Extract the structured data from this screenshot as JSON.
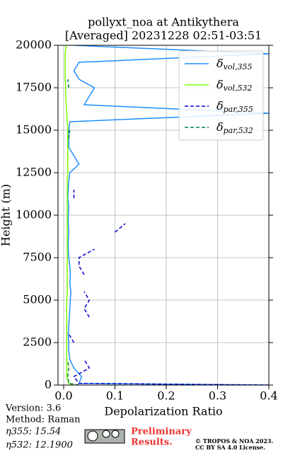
{
  "chart_data": {
    "type": "line",
    "title": [
      "pollyxt_noa at Antikythera",
      "[Averaged] 20231228 02:51-03:51"
    ],
    "x_label": "Depolarization Ratio",
    "y_label": "Height (m)",
    "xlim": [
      -0.011,
      0.4
    ],
    "ylim": [
      0,
      20000
    ],
    "xticks": [
      {
        "value": 0,
        "label": "0.0"
      },
      0.1,
      0.2,
      0.3,
      0.4
    ],
    "yticks": [
      0,
      2500,
      5000,
      7500,
      10000,
      12500,
      15000,
      17500,
      20000
    ],
    "grid": true,
    "legend": "upper right",
    "y": [
      0,
      100,
      500,
      1000,
      1500,
      2000,
      2500,
      3000,
      3500,
      4000,
      4500,
      5000,
      5500,
      6000,
      6500,
      7000,
      7500,
      8000,
      8500,
      9000,
      9500,
      10000,
      10500,
      11000,
      11500,
      12000,
      12500,
      13000,
      13500,
      14000,
      14500,
      15000,
      15500,
      16000,
      16500,
      17000,
      17500,
      18000,
      18500,
      19000,
      19500,
      20000
    ],
    "series": [
      {
        "name": "δvol,355",
        "color": "#1e8fff",
        "linestyle": "solid",
        "values": [
          0.4,
          0.03,
          0.035,
          0.02,
          0.012,
          0.01,
          0.01,
          0.009,
          0.01,
          0.011,
          0.012,
          0.013,
          0.014,
          0.012,
          0.013,
          0.012,
          0.01,
          0.009,
          0.009,
          0.01,
          0.009,
          0.009,
          0.01,
          0.008,
          0.009,
          0.01,
          0.012,
          0.03,
          0.02,
          0.01,
          0.01,
          0.01,
          0.012,
          0.4,
          0.04,
          0.05,
          0.06,
          0.03,
          0.02,
          0.03,
          0.4,
          0.02
        ]
      },
      {
        "name": "δvol,532",
        "color": "#7cfc00",
        "linestyle": "solid",
        "values": [
          0.02,
          0.01,
          0.006,
          0.006,
          0.006,
          0.006,
          0.006,
          0.006,
          0.006,
          0.006,
          0.006,
          0.006,
          0.007,
          0.007,
          0.007,
          0.007,
          0.007,
          0.007,
          0.007,
          0.007,
          0.007,
          0.007,
          0.007,
          0.007,
          0.007,
          0.007,
          0.008,
          0.008,
          0.008,
          0.008,
          0.008,
          0.008,
          0.007,
          0.006,
          0.005,
          0.004,
          0.004,
          0.003,
          0.003,
          0.003,
          0.003,
          0.005
        ]
      },
      {
        "name": "δpar,355",
        "color": "#0000cc",
        "linestyle": "dashed",
        "values": [
          0.4,
          0.03,
          0.02,
          0.05,
          0.04,
          null,
          0.02,
          0.01,
          null,
          0.05,
          0.04,
          0.05,
          0.04,
          null,
          0.04,
          0.03,
          0.03,
          0.06,
          null,
          0.1,
          0.12,
          null,
          null,
          0.02,
          0.02,
          null,
          null,
          null,
          null,
          null,
          null,
          null,
          null,
          null,
          null,
          null,
          null,
          null,
          null,
          null,
          null,
          null
        ]
      },
      {
        "name": "δpar,532",
        "color": "#008040",
        "linestyle": "dashed",
        "values": [
          0.03,
          0.01,
          0.008,
          0.01,
          0.008,
          null,
          null,
          null,
          null,
          null,
          null,
          null,
          null,
          null,
          null,
          null,
          null,
          null,
          null,
          null,
          null,
          null,
          null,
          null,
          null,
          null,
          null,
          null,
          null,
          null,
          0.01,
          0.012,
          null,
          null,
          null,
          null,
          0.01,
          0.008,
          null,
          null,
          null,
          null
        ]
      }
    ]
  },
  "footer": {
    "version": "Version: 3.6",
    "method": "Method: Raman",
    "eta355": "η355:  15.54",
    "eta532": "η532: 12.1900",
    "preliminary": [
      "Preliminary",
      "Results."
    ],
    "copyright": [
      "© TROPOS & NOA 2023.",
      "CC BY SA 4.0 License."
    ]
  }
}
